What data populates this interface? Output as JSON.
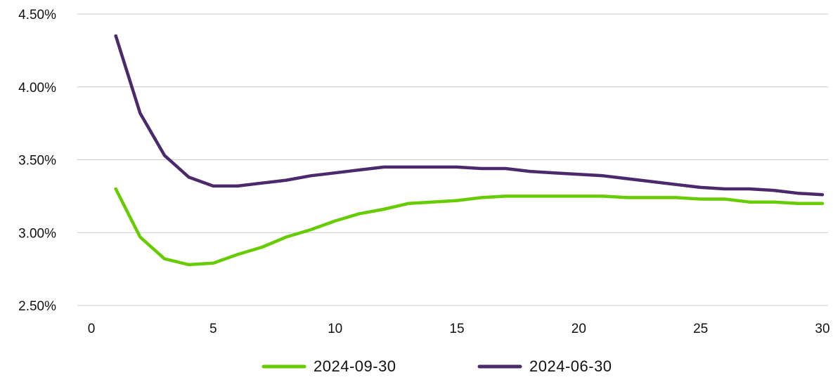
{
  "chart_data": {
    "type": "line",
    "title": "",
    "xlabel": "",
    "ylabel": "",
    "xlim": [
      0,
      30
    ],
    "ylim": [
      2.5,
      4.5
    ],
    "x_ticks": [
      0,
      5,
      10,
      15,
      20,
      25,
      30
    ],
    "y_ticks": [
      2.5,
      3.0,
      3.5,
      4.0,
      4.5
    ],
    "y_tick_labels": [
      "2.50%",
      "3.00%",
      "3.50%",
      "4.00%",
      "4.50%"
    ],
    "grid": "horizontal",
    "legend_position": "bottom-center",
    "x": [
      1,
      2,
      3,
      4,
      5,
      6,
      7,
      8,
      9,
      10,
      11,
      12,
      13,
      14,
      15,
      16,
      17,
      18,
      19,
      20,
      21,
      22,
      23,
      24,
      25,
      26,
      27,
      28,
      29,
      30
    ],
    "series": [
      {
        "name": "2024-09-30",
        "color": "#66cc00",
        "values": [
          3.3,
          2.97,
          2.82,
          2.78,
          2.79,
          2.85,
          2.9,
          2.97,
          3.02,
          3.08,
          3.13,
          3.16,
          3.2,
          3.21,
          3.22,
          3.24,
          3.25,
          3.25,
          3.25,
          3.25,
          3.25,
          3.24,
          3.24,
          3.24,
          3.23,
          3.23,
          3.21,
          3.21,
          3.2,
          3.2
        ]
      },
      {
        "name": "2024-06-30",
        "color": "#4a2a6a",
        "values": [
          4.35,
          3.82,
          3.53,
          3.38,
          3.32,
          3.32,
          3.34,
          3.36,
          3.39,
          3.41,
          3.43,
          3.45,
          3.45,
          3.45,
          3.45,
          3.44,
          3.44,
          3.42,
          3.41,
          3.4,
          3.39,
          3.37,
          3.35,
          3.33,
          3.31,
          3.3,
          3.3,
          3.29,
          3.27,
          3.26
        ]
      }
    ]
  }
}
